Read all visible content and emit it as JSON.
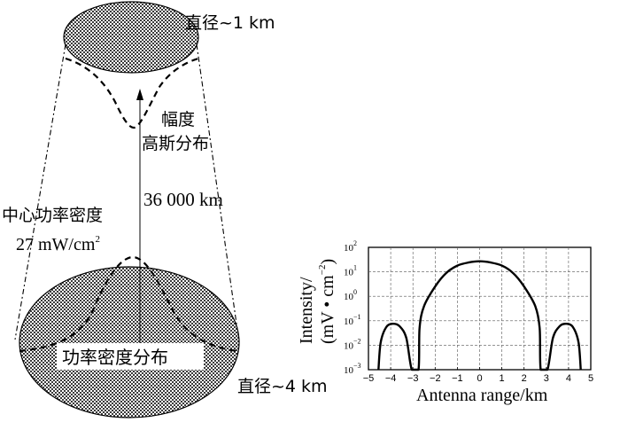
{
  "diagram": {
    "top_diameter_label": "直径~1 km",
    "amplitude_label_line1": "幅度",
    "amplitude_label_line2": "高斯分布",
    "distance_label": "36 000 km",
    "center_power_label_line1": "中心功率密度",
    "center_power_label_line2": "27 mW/cm",
    "center_power_superscript": "2",
    "power_distribution_label": "功率密度分布",
    "bottom_diameter_label": "直径~4 km"
  },
  "chart_data": {
    "type": "line",
    "xlabel": "Antenna range/km",
    "ylabel_line1": "Intensity/",
    "ylabel_line2": "(mV • cm",
    "ylabel_sup": "−2",
    "ylabel_close": ")",
    "x_ticks": [
      "−5",
      "−4",
      "−3",
      "−2",
      "−1",
      "0",
      "1",
      "2",
      "3",
      "4",
      "5"
    ],
    "y_ticks": [
      {
        "base": "10",
        "exp": "2",
        "value": 100
      },
      {
        "base": "10",
        "exp": "1",
        "value": 10
      },
      {
        "base": "10",
        "exp": "0",
        "value": 1
      },
      {
        "base": "10",
        "exp": "−1",
        "value": 0.1
      },
      {
        "base": "10",
        "exp": "−2",
        "value": 0.01
      },
      {
        "base": "10",
        "exp": "−3",
        "value": 0.001
      }
    ],
    "xlim": [
      -5,
      5
    ],
    "ylim": [
      0.001,
      100
    ],
    "y_scale": "log",
    "grid": "dashed",
    "series": [
      {
        "line_color": "#000000",
        "points": [
          [
            -4.55,
            0.001
          ],
          [
            -4.45,
            0.013
          ],
          [
            -4.2,
            0.055
          ],
          [
            -3.9,
            0.075
          ],
          [
            -3.6,
            0.06
          ],
          [
            -3.3,
            0.02
          ],
          [
            -3.05,
            0.001
          ],
          [
            -2.75,
            0.001
          ],
          [
            -2.7,
            0.05
          ],
          [
            -2.5,
            0.4
          ],
          [
            -2.0,
            2.5
          ],
          [
            -1.5,
            9
          ],
          [
            -1.0,
            18
          ],
          [
            -0.5,
            24
          ],
          [
            0,
            27
          ],
          [
            0.5,
            24
          ],
          [
            1.0,
            18
          ],
          [
            1.5,
            9
          ],
          [
            2.0,
            2.5
          ],
          [
            2.5,
            0.4
          ],
          [
            2.7,
            0.05
          ],
          [
            2.75,
            0.001
          ],
          [
            3.05,
            0.001
          ],
          [
            3.3,
            0.02
          ],
          [
            3.6,
            0.06
          ],
          [
            3.9,
            0.075
          ],
          [
            4.2,
            0.055
          ],
          [
            4.45,
            0.013
          ],
          [
            4.55,
            0.001
          ]
        ]
      }
    ]
  }
}
